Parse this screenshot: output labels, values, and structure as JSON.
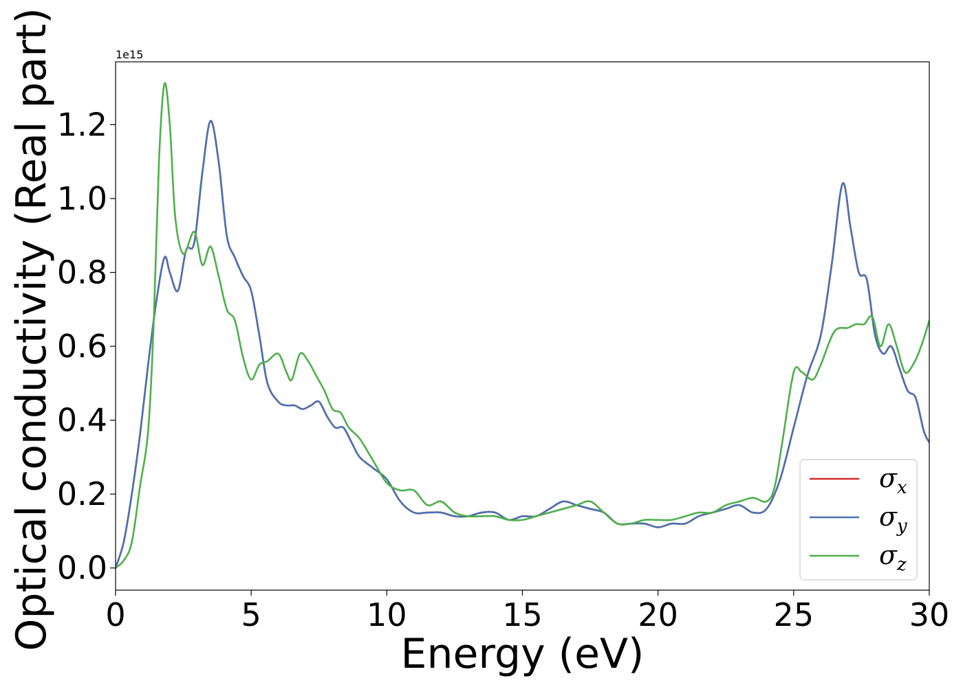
{
  "chart_data": {
    "type": "line",
    "title": "",
    "xlabel": "Energy (eV)",
    "ylabel": "Optical conductivity (Real part)",
    "y_offset_text": "1e15",
    "y_multiplier": 1000000000000000.0,
    "xlim": [
      0,
      30
    ],
    "ylim": [
      -0.06,
      1.37
    ],
    "x_ticks": [
      0,
      5,
      10,
      15,
      20,
      25,
      30
    ],
    "x_tick_labels": [
      "0",
      "5",
      "10",
      "15",
      "20",
      "25",
      "30"
    ],
    "y_ticks": [
      0.0,
      0.2,
      0.4,
      0.6,
      0.8,
      1.0,
      1.2
    ],
    "y_tick_labels": [
      "0.0",
      "0.2",
      "0.4",
      "0.6",
      "0.8",
      "1.0",
      "1.2"
    ],
    "grid": false,
    "legend_position": "lower-right",
    "series": [
      {
        "name": "σx",
        "symbol": "σ",
        "subscript": "x",
        "color": "#d62728",
        "x": [
          0,
          0.3,
          0.6,
          0.9,
          1.2,
          1.5,
          1.8,
          2.0,
          2.3,
          2.6,
          2.9,
          3.2,
          3.5,
          3.8,
          4.1,
          4.4,
          4.7,
          5.0,
          5.3,
          5.6,
          6.0,
          6.3,
          6.6,
          6.9,
          7.2,
          7.5,
          7.8,
          8.1,
          8.4,
          8.7,
          9.0,
          9.5,
          10.0,
          10.5,
          11.0,
          11.5,
          12.0,
          12.5,
          13.0,
          13.5,
          14.0,
          14.5,
          15.0,
          15.5,
          16.0,
          16.5,
          17.0,
          17.5,
          18.0,
          18.5,
          19.0,
          19.5,
          20.0,
          20.5,
          21.0,
          21.5,
          22.0,
          22.5,
          23.0,
          23.5,
          24.0,
          24.5,
          25.0,
          25.5,
          26.0,
          26.4,
          26.8,
          27.1,
          27.4,
          27.7,
          28.0,
          28.3,
          28.6,
          28.9,
          29.2,
          29.5,
          29.8,
          30.0
        ],
        "y": [
          0.0,
          0.07,
          0.2,
          0.36,
          0.55,
          0.72,
          0.84,
          0.8,
          0.75,
          0.86,
          0.88,
          1.07,
          1.21,
          1.1,
          0.9,
          0.84,
          0.79,
          0.75,
          0.63,
          0.5,
          0.45,
          0.44,
          0.44,
          0.43,
          0.44,
          0.45,
          0.41,
          0.38,
          0.38,
          0.34,
          0.3,
          0.27,
          0.24,
          0.18,
          0.15,
          0.15,
          0.15,
          0.14,
          0.14,
          0.15,
          0.15,
          0.13,
          0.14,
          0.14,
          0.16,
          0.18,
          0.17,
          0.16,
          0.15,
          0.12,
          0.12,
          0.12,
          0.11,
          0.12,
          0.12,
          0.14,
          0.15,
          0.16,
          0.17,
          0.15,
          0.16,
          0.24,
          0.38,
          0.52,
          0.63,
          0.82,
          1.04,
          0.92,
          0.8,
          0.78,
          0.63,
          0.58,
          0.6,
          0.54,
          0.48,
          0.46,
          0.37,
          0.34
        ]
      },
      {
        "name": "σy",
        "symbol": "σ",
        "subscript": "y",
        "color": "#4a72b0",
        "x": [
          0,
          0.3,
          0.6,
          0.9,
          1.2,
          1.5,
          1.8,
          2.0,
          2.3,
          2.6,
          2.9,
          3.2,
          3.5,
          3.8,
          4.1,
          4.4,
          4.7,
          5.0,
          5.3,
          5.6,
          6.0,
          6.3,
          6.6,
          6.9,
          7.2,
          7.5,
          7.8,
          8.1,
          8.4,
          8.7,
          9.0,
          9.5,
          10.0,
          10.5,
          11.0,
          11.5,
          12.0,
          12.5,
          13.0,
          13.5,
          14.0,
          14.5,
          15.0,
          15.5,
          16.0,
          16.5,
          17.0,
          17.5,
          18.0,
          18.5,
          19.0,
          19.5,
          20.0,
          20.5,
          21.0,
          21.5,
          22.0,
          22.5,
          23.0,
          23.5,
          24.0,
          24.5,
          25.0,
          25.5,
          26.0,
          26.4,
          26.8,
          27.1,
          27.4,
          27.7,
          28.0,
          28.3,
          28.6,
          28.9,
          29.2,
          29.5,
          29.8,
          30.0
        ],
        "y": [
          0.0,
          0.07,
          0.2,
          0.36,
          0.55,
          0.72,
          0.84,
          0.8,
          0.75,
          0.86,
          0.88,
          1.07,
          1.21,
          1.1,
          0.9,
          0.84,
          0.79,
          0.75,
          0.63,
          0.5,
          0.45,
          0.44,
          0.44,
          0.43,
          0.44,
          0.45,
          0.41,
          0.38,
          0.38,
          0.34,
          0.3,
          0.27,
          0.24,
          0.18,
          0.15,
          0.15,
          0.15,
          0.14,
          0.14,
          0.15,
          0.15,
          0.13,
          0.14,
          0.14,
          0.16,
          0.18,
          0.17,
          0.16,
          0.15,
          0.12,
          0.12,
          0.12,
          0.11,
          0.12,
          0.12,
          0.14,
          0.15,
          0.16,
          0.17,
          0.15,
          0.16,
          0.24,
          0.38,
          0.52,
          0.63,
          0.82,
          1.04,
          0.92,
          0.8,
          0.78,
          0.63,
          0.58,
          0.6,
          0.54,
          0.48,
          0.46,
          0.37,
          0.34
        ]
      },
      {
        "name": "σz",
        "symbol": "σ",
        "subscript": "z",
        "color": "#4daf4a",
        "x": [
          0,
          0.3,
          0.6,
          0.9,
          1.2,
          1.4,
          1.6,
          1.8,
          2.0,
          2.2,
          2.5,
          2.9,
          3.2,
          3.5,
          3.8,
          4.1,
          4.4,
          4.7,
          5.0,
          5.3,
          5.6,
          6.0,
          6.3,
          6.5,
          6.8,
          7.1,
          7.4,
          7.7,
          8.0,
          8.3,
          8.6,
          9.0,
          9.5,
          10.0,
          10.5,
          11.0,
          11.5,
          12.0,
          12.5,
          13.0,
          13.5,
          14.0,
          14.5,
          15.0,
          15.5,
          16.0,
          16.5,
          17.0,
          17.5,
          18.0,
          18.5,
          19.0,
          19.5,
          20.0,
          20.5,
          21.0,
          21.5,
          22.0,
          22.5,
          23.0,
          23.5,
          24.0,
          24.3,
          24.6,
          25.0,
          25.3,
          25.7,
          26.0,
          26.5,
          27.0,
          27.3,
          27.6,
          27.9,
          28.2,
          28.5,
          28.8,
          29.1,
          29.4,
          29.7,
          30.0
        ],
        "y": [
          0.0,
          0.02,
          0.07,
          0.22,
          0.37,
          0.65,
          1.1,
          1.31,
          1.2,
          0.95,
          0.85,
          0.91,
          0.82,
          0.87,
          0.79,
          0.7,
          0.67,
          0.57,
          0.51,
          0.55,
          0.56,
          0.58,
          0.53,
          0.51,
          0.58,
          0.56,
          0.52,
          0.48,
          0.43,
          0.42,
          0.38,
          0.35,
          0.29,
          0.23,
          0.21,
          0.21,
          0.17,
          0.18,
          0.15,
          0.14,
          0.14,
          0.14,
          0.13,
          0.13,
          0.14,
          0.15,
          0.16,
          0.17,
          0.18,
          0.15,
          0.12,
          0.12,
          0.13,
          0.13,
          0.13,
          0.14,
          0.15,
          0.15,
          0.17,
          0.18,
          0.19,
          0.18,
          0.22,
          0.35,
          0.53,
          0.53,
          0.51,
          0.55,
          0.64,
          0.65,
          0.66,
          0.66,
          0.68,
          0.6,
          0.66,
          0.6,
          0.53,
          0.55,
          0.6,
          0.67
        ]
      }
    ]
  }
}
